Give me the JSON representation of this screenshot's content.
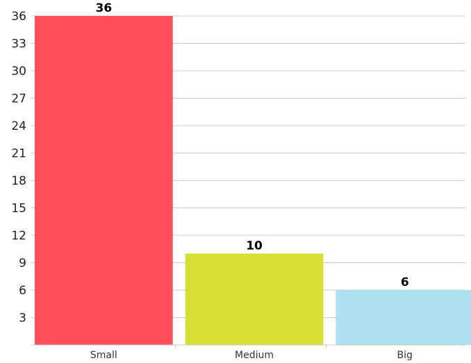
{
  "chart_data": {
    "type": "bar",
    "title": "",
    "xlabel": "",
    "ylabel": "",
    "categories": [
      "Small",
      "Medium",
      "Big"
    ],
    "values": [
      36,
      10,
      6
    ],
    "colors": [
      "#ff4d5a",
      "#d8df34",
      "#ade0f1"
    ],
    "ylim": [
      0,
      36
    ],
    "yticks": [
      3,
      6,
      9,
      12,
      15,
      18,
      21,
      24,
      27,
      30,
      33,
      36
    ],
    "grid": true,
    "legend": "none",
    "data_labels": true
  }
}
